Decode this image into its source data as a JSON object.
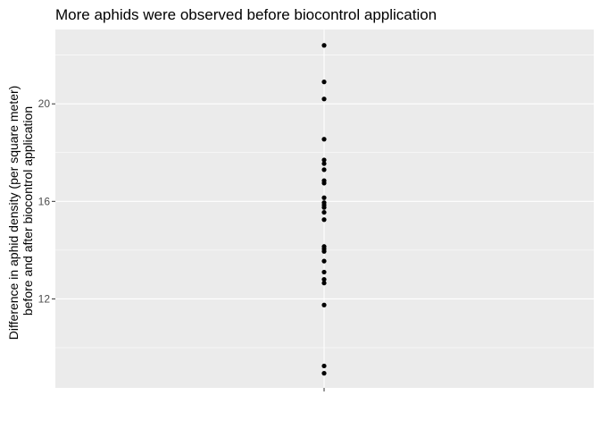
{
  "chart_data": {
    "type": "scatter",
    "title": "More aphids were observed before biocontrol application",
    "ylabel_lines": [
      "Difference in aphid density (per square meter)",
      "before and after biocontrol application"
    ],
    "xlabel": "",
    "yticks": [
      12,
      16,
      20
    ],
    "ylim": [
      8.35,
      23.05
    ],
    "grid": true,
    "y": [
      22.4,
      20.9,
      20.2,
      18.55,
      17.7,
      17.55,
      17.3,
      16.85,
      16.75,
      16.15,
      15.95,
      15.85,
      15.75,
      15.55,
      15.25,
      14.15,
      14.05,
      13.95,
      13.55,
      13.1,
      12.8,
      12.65,
      11.75,
      9.25,
      8.95
    ]
  },
  "colors": {
    "panel_background": "#EBEBEB",
    "grid_major": "#FFFFFF",
    "point": "#000000",
    "tick_text": "#4D4D4D"
  }
}
